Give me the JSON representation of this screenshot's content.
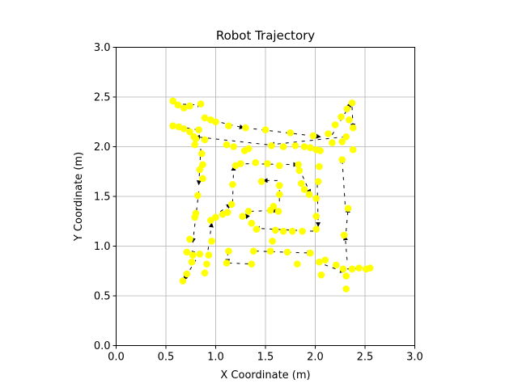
{
  "chart_data": {
    "type": "scatter",
    "title": "Robot Trajectory",
    "xlabel": "X Coordinate (m)",
    "ylabel": "Y Coordinate (m)",
    "xlim": [
      0.0,
      3.0
    ],
    "ylim": [
      0.0,
      3.0
    ],
    "xticks": [
      "0.0",
      "0.5",
      "1.0",
      "1.5",
      "2.0",
      "2.5",
      "3.0"
    ],
    "yticks": [
      "0.0",
      "0.5",
      "1.0",
      "1.5",
      "2.0",
      "2.5",
      "3.0"
    ],
    "grid": true,
    "marker_color": "#ffff00",
    "arrow_color": "#000000",
    "points": [
      [
        0.57,
        2.46
      ],
      [
        0.62,
        2.42
      ],
      [
        0.68,
        2.39
      ],
      [
        0.74,
        2.41
      ],
      [
        0.85,
        2.43
      ],
      [
        0.89,
        2.29
      ],
      [
        0.95,
        2.27
      ],
      [
        1.0,
        2.25
      ],
      [
        1.13,
        2.21
      ],
      [
        1.3,
        2.19
      ],
      [
        1.5,
        2.17
      ],
      [
        1.75,
        2.14
      ],
      [
        1.98,
        2.11
      ],
      [
        2.13,
        2.13
      ],
      [
        2.2,
        2.22
      ],
      [
        2.26,
        2.3
      ],
      [
        2.32,
        2.38
      ],
      [
        2.37,
        2.44
      ],
      [
        2.34,
        2.27
      ],
      [
        2.38,
        2.19
      ],
      [
        2.31,
        2.1
      ],
      [
        2.38,
        1.97
      ],
      [
        2.27,
        2.05
      ],
      [
        2.17,
        2.04
      ],
      [
        2.05,
        1.96
      ],
      [
        1.95,
        1.99
      ],
      [
        1.89,
        2.0
      ],
      [
        1.8,
        2.01
      ],
      [
        1.68,
        2.0
      ],
      [
        1.56,
        2.01
      ],
      [
        1.33,
        1.98
      ],
      [
        1.29,
        1.96
      ],
      [
        1.18,
        2.0
      ],
      [
        1.11,
        2.02
      ],
      [
        0.89,
        2.07
      ],
      [
        0.8,
        2.08
      ],
      [
        0.78,
        2.1
      ],
      [
        0.83,
        2.17
      ],
      [
        0.74,
        2.15
      ],
      [
        0.68,
        2.18
      ],
      [
        0.63,
        2.2
      ],
      [
        0.57,
        2.21
      ],
      [
        0.79,
        2.02
      ],
      [
        0.86,
        1.93
      ],
      [
        0.87,
        1.82
      ],
      [
        0.84,
        1.77
      ],
      [
        0.87,
        1.68
      ],
      [
        0.82,
        1.51
      ],
      [
        0.8,
        1.33
      ],
      [
        0.79,
        1.29
      ],
      [
        0.74,
        1.07
      ],
      [
        0.71,
        0.94
      ],
      [
        0.77,
        0.91
      ],
      [
        0.84,
        0.92
      ],
      [
        0.76,
        0.84
      ],
      [
        0.71,
        0.72
      ],
      [
        0.67,
        0.65
      ],
      [
        0.89,
        0.73
      ],
      [
        0.91,
        0.82
      ],
      [
        0.93,
        0.91
      ],
      [
        0.96,
        1.05
      ],
      [
        0.95,
        1.26
      ],
      [
        1.0,
        1.29
      ],
      [
        1.07,
        1.32
      ],
      [
        1.12,
        1.34
      ],
      [
        1.16,
        1.42
      ],
      [
        1.17,
        1.62
      ],
      [
        1.2,
        1.81
      ],
      [
        1.25,
        1.83
      ],
      [
        1.4,
        1.84
      ],
      [
        1.52,
        1.83
      ],
      [
        1.64,
        1.81
      ],
      [
        1.83,
        1.82
      ],
      [
        1.84,
        1.76
      ],
      [
        1.86,
        1.63
      ],
      [
        1.89,
        1.57
      ],
      [
        1.94,
        1.52
      ],
      [
        2.03,
        1.65
      ],
      [
        2.04,
        1.8
      ],
      [
        2.01,
        1.48
      ],
      [
        2.01,
        1.3
      ],
      [
        2.01,
        1.17
      ],
      [
        1.87,
        1.15
      ],
      [
        1.77,
        1.15
      ],
      [
        1.68,
        1.15
      ],
      [
        1.6,
        1.16
      ],
      [
        1.57,
        1.05
      ],
      [
        1.41,
        1.17
      ],
      [
        1.36,
        1.23
      ],
      [
        1.27,
        1.3
      ],
      [
        1.33,
        1.35
      ],
      [
        1.55,
        1.36
      ],
      [
        1.63,
        1.35
      ],
      [
        1.58,
        1.4
      ],
      [
        1.64,
        1.52
      ],
      [
        1.64,
        1.61
      ],
      [
        1.46,
        1.65
      ],
      [
        1.13,
        0.95
      ],
      [
        1.11,
        0.83
      ],
      [
        1.36,
        0.82
      ],
      [
        1.38,
        0.95
      ],
      [
        1.55,
        0.95
      ],
      [
        1.72,
        0.94
      ],
      [
        1.82,
        0.82
      ],
      [
        1.95,
        0.93
      ],
      [
        2.04,
        0.84
      ],
      [
        2.1,
        0.86
      ],
      [
        2.06,
        0.71
      ],
      [
        2.21,
        0.81
      ],
      [
        2.28,
        0.77
      ],
      [
        2.31,
        0.7
      ],
      [
        2.31,
        0.57
      ],
      [
        2.37,
        0.77
      ],
      [
        2.44,
        0.78
      ],
      [
        2.51,
        0.77
      ],
      [
        2.55,
        0.78
      ],
      [
        2.29,
        1.11
      ],
      [
        2.33,
        1.38
      ],
      [
        2.27,
        1.87
      ],
      [
        2.01,
        1.97
      ]
    ],
    "arrows": [
      [
        0.59,
        2.43,
        0.86,
        2.42
      ],
      [
        0.9,
        2.28,
        1.28,
        2.19
      ],
      [
        1.3,
        2.19,
        2.05,
        2.1
      ],
      [
        2.17,
        2.12,
        2.36,
        2.44
      ],
      [
        2.37,
        2.4,
        2.38,
        2.19
      ],
      [
        2.3,
        2.1,
        1.55,
        2.02
      ],
      [
        1.52,
        2.02,
        0.8,
        2.1
      ],
      [
        0.82,
        2.17,
        0.58,
        2.21
      ],
      [
        0.85,
        1.98,
        0.83,
        1.62
      ],
      [
        0.83,
        1.55,
        0.77,
        1.04
      ],
      [
        0.76,
        0.95,
        0.86,
        0.92
      ],
      [
        0.8,
        0.86,
        0.68,
        0.66
      ],
      [
        0.89,
        0.72,
        0.96,
        1.23
      ],
      [
        0.98,
        1.3,
        1.15,
        1.42
      ],
      [
        1.17,
        1.44,
        1.18,
        1.8
      ],
      [
        1.22,
        1.83,
        1.82,
        1.82
      ],
      [
        1.84,
        1.78,
        1.95,
        1.53
      ],
      [
        2.02,
        1.62,
        2.03,
        1.2
      ],
      [
        1.98,
        1.15,
        1.4,
        1.18
      ],
      [
        1.37,
        1.23,
        1.3,
        1.32
      ],
      [
        1.35,
        1.35,
        1.62,
        1.36
      ],
      [
        1.64,
        1.45,
        1.64,
        1.63
      ],
      [
        1.62,
        1.66,
        1.48,
        1.66
      ],
      [
        1.12,
        0.94,
        1.12,
        0.83
      ],
      [
        1.13,
        0.83,
        1.38,
        0.82
      ],
      [
        1.4,
        0.95,
        1.96,
        0.93
      ],
      [
        2.02,
        0.84,
        2.29,
        0.74
      ],
      [
        2.32,
        0.77,
        2.55,
        0.78
      ],
      [
        2.32,
        0.86,
        2.3,
        1.1
      ],
      [
        2.31,
        1.15,
        2.33,
        1.38
      ],
      [
        2.3,
        1.42,
        2.27,
        1.88
      ]
    ]
  }
}
